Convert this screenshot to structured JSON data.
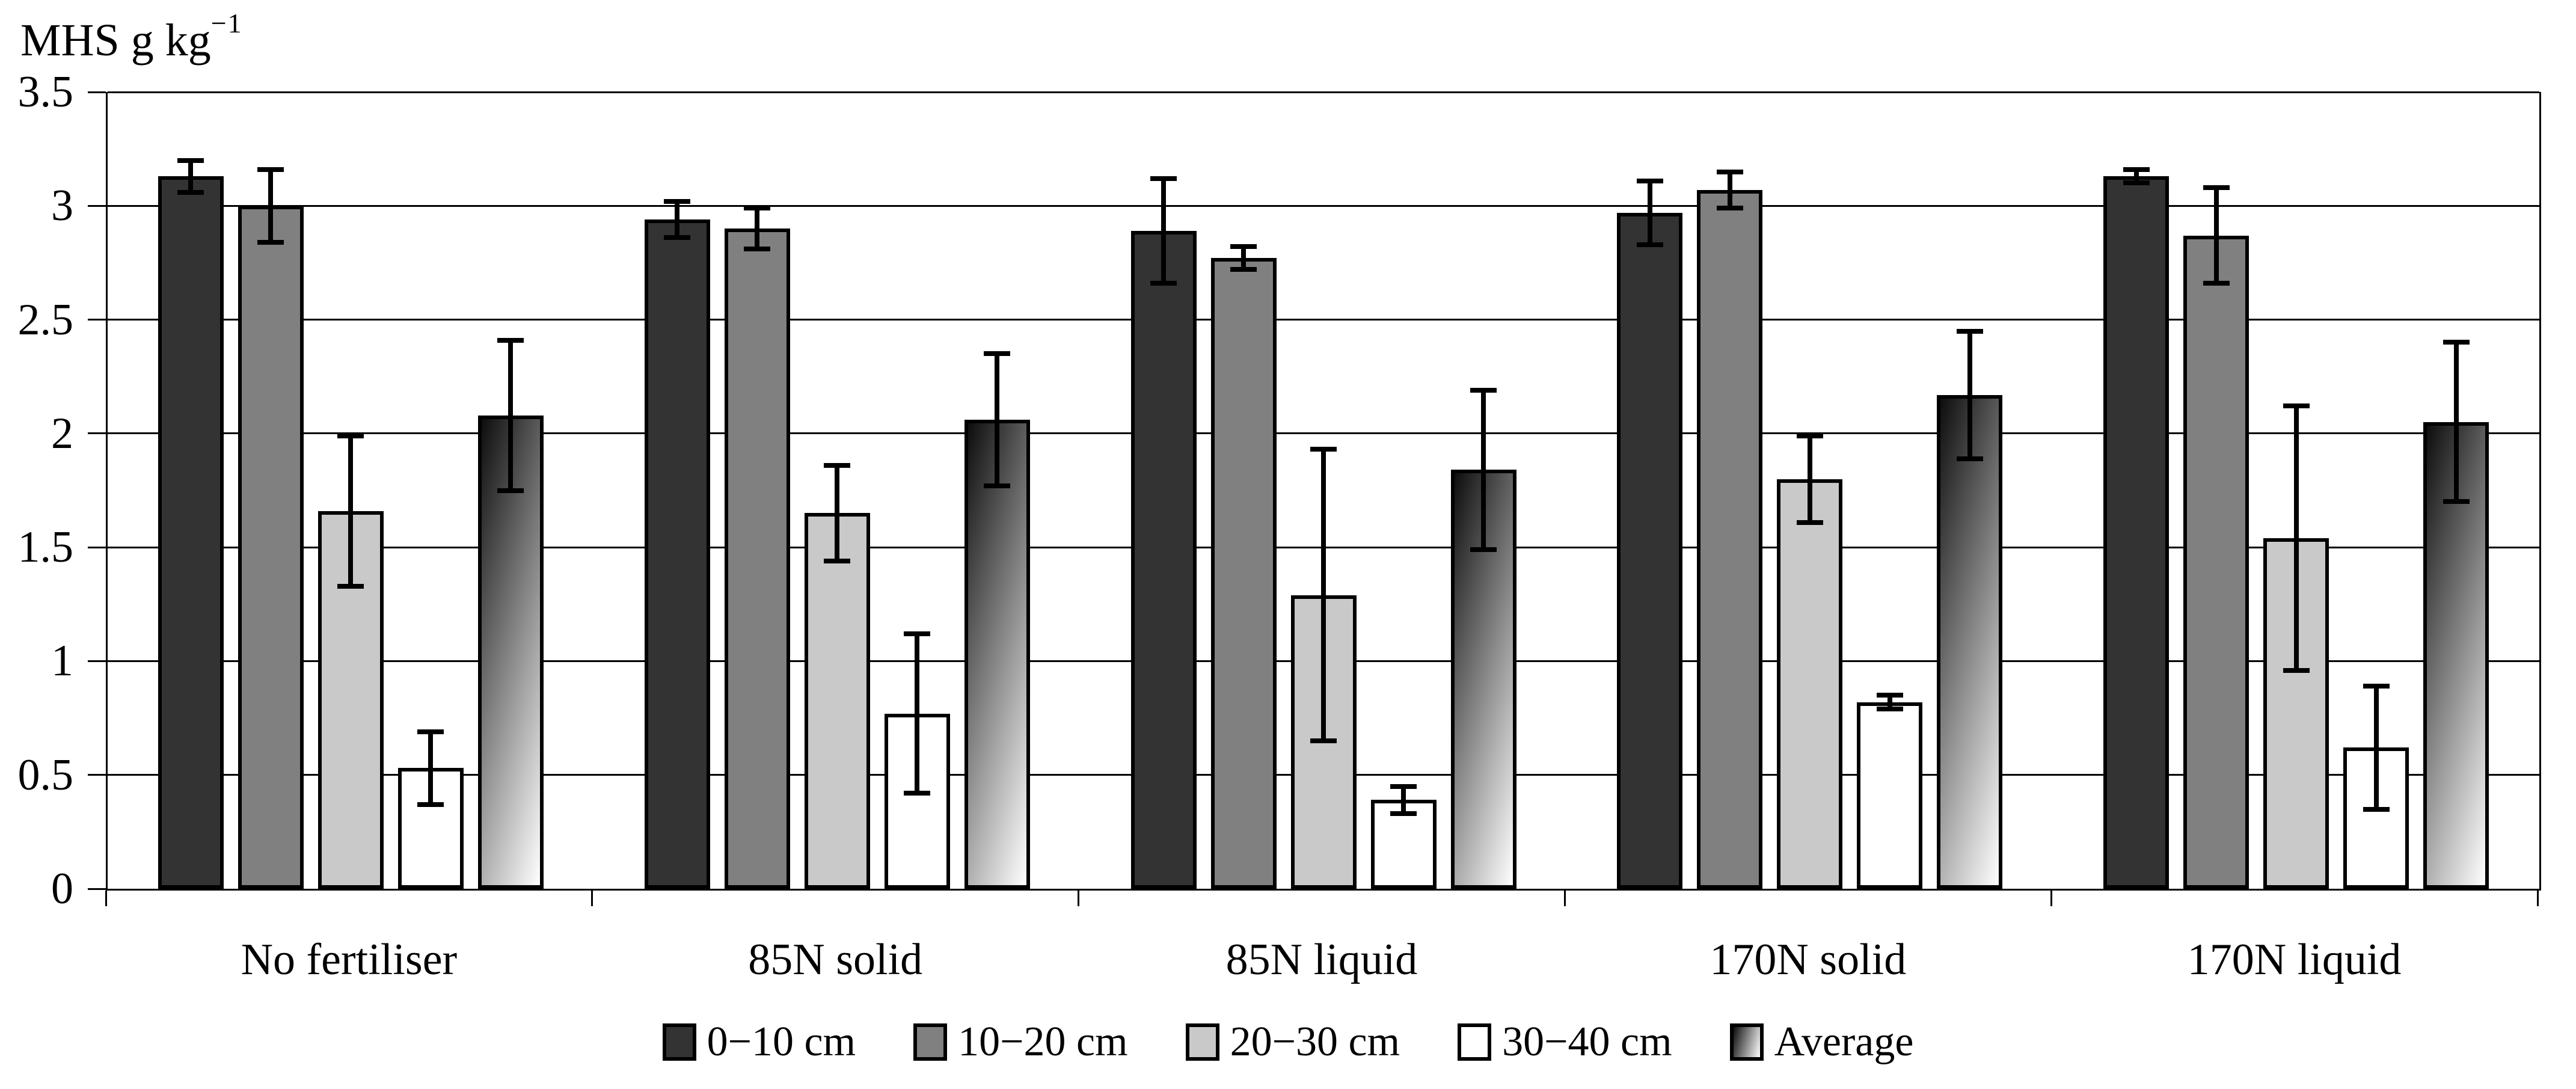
{
  "chart_data": {
    "type": "bar",
    "title": "",
    "ylabel": {
      "base": "MHS g kg",
      "exponent": "−1"
    },
    "xlabel": "",
    "ylim": [
      0,
      3.5
    ],
    "grid": true,
    "legend_position": "bottom",
    "bar_border_color": "#000000",
    "yticks": [
      {
        "value": 0,
        "label": "0"
      },
      {
        "value": 0.5,
        "label": "0.5"
      },
      {
        "value": 1,
        "label": "1"
      },
      {
        "value": 1.5,
        "label": "1.5"
      },
      {
        "value": 2,
        "label": "2"
      },
      {
        "value": 2.5,
        "label": "2.5"
      },
      {
        "value": 3,
        "label": "3"
      },
      {
        "value": 3.5,
        "label": "3.5"
      }
    ],
    "categories": [
      "No fertiliser",
      "85N solid",
      "85N liquid",
      "170N solid",
      "170N liquid"
    ],
    "series": [
      {
        "name": "0−10 cm",
        "fill": {
          "type": "solid",
          "color": "#333333"
        },
        "values": [
          3.13,
          2.94,
          2.89,
          2.97,
          3.13
        ],
        "errors": [
          0.07,
          0.08,
          0.23,
          0.14,
          0.03
        ]
      },
      {
        "name": "10−20 cm",
        "fill": {
          "type": "solid",
          "color": "#808080"
        },
        "values": [
          3.0,
          2.9,
          2.77,
          3.07,
          2.87
        ],
        "errors": [
          0.16,
          0.09,
          0.05,
          0.08,
          0.21
        ]
      },
      {
        "name": "20−30 cm",
        "fill": {
          "type": "solid",
          "color": "#c9c9c9"
        },
        "values": [
          1.66,
          1.65,
          1.29,
          1.8,
          1.54
        ],
        "errors": [
          0.33,
          0.21,
          0.64,
          0.19,
          0.58
        ]
      },
      {
        "name": "30−40 cm",
        "fill": {
          "type": "solid",
          "color": "#ffffff"
        },
        "values": [
          0.53,
          0.77,
          0.39,
          0.82,
          0.62
        ],
        "errors": [
          0.16,
          0.35,
          0.06,
          0.03,
          0.27
        ]
      },
      {
        "name": "Average",
        "fill": {
          "type": "gradient",
          "from": "#0d0d0d",
          "to": "#ffffff",
          "angle": "105deg"
        },
        "values": [
          2.08,
          2.06,
          1.84,
          2.17,
          2.05
        ],
        "errors": [
          0.33,
          0.29,
          0.35,
          0.28,
          0.35
        ]
      }
    ]
  }
}
